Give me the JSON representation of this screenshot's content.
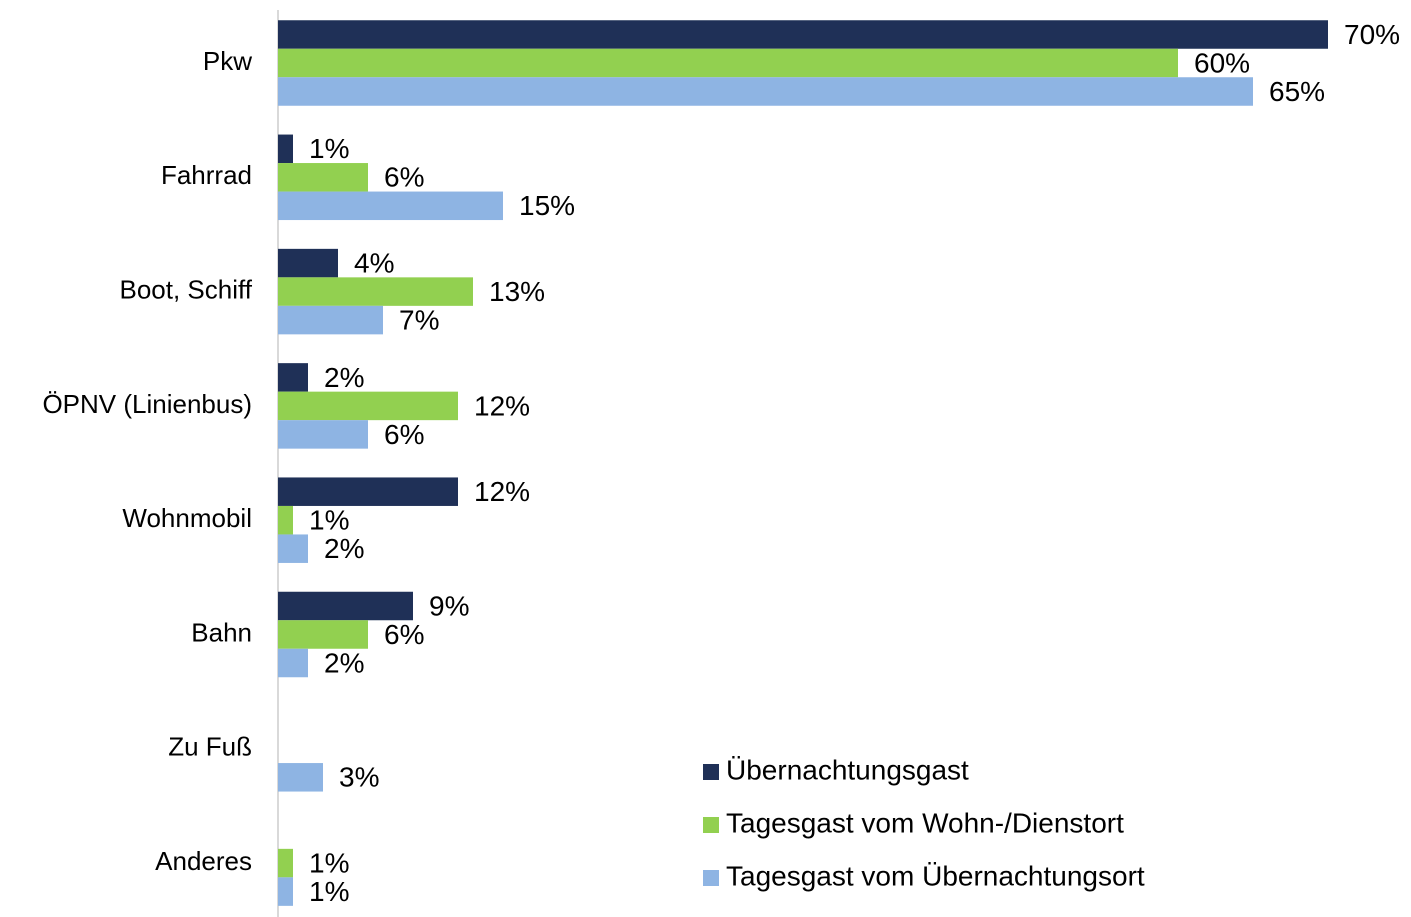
{
  "chart_data": {
    "type": "bar",
    "orientation": "horizontal",
    "categories": [
      "Pkw",
      "Fahrrad",
      "Boot, Schiff",
      "ÖPNV (Linienbus)",
      "Wohnmobil",
      "Bahn",
      "Zu Fuß",
      "Anderes"
    ],
    "series": [
      {
        "name": "Übernachtungsgast",
        "color": "#1f3057",
        "values": [
          70,
          1,
          4,
          2,
          12,
          9,
          null,
          null
        ],
        "value_labels": [
          "70%",
          "1%",
          "4%",
          "2%",
          "12%",
          "9%",
          null,
          null
        ]
      },
      {
        "name": "Tagesgast vom Wohn-/Dienstort",
        "color": "#92d050",
        "values": [
          60,
          6,
          13,
          12,
          1,
          6,
          null,
          1
        ],
        "value_labels": [
          "60%",
          "6%",
          "13%",
          "12%",
          "1%",
          "6%",
          null,
          "1%"
        ]
      },
      {
        "name": "Tagesgast vom Übernachtungsort",
        "color": "#8eb4e3",
        "values": [
          65,
          15,
          7,
          6,
          2,
          2,
          3,
          1
        ],
        "value_labels": [
          "65%",
          "15%",
          "7%",
          "6%",
          "2%",
          "2%",
          "3%",
          "1%"
        ]
      }
    ]
  }
}
